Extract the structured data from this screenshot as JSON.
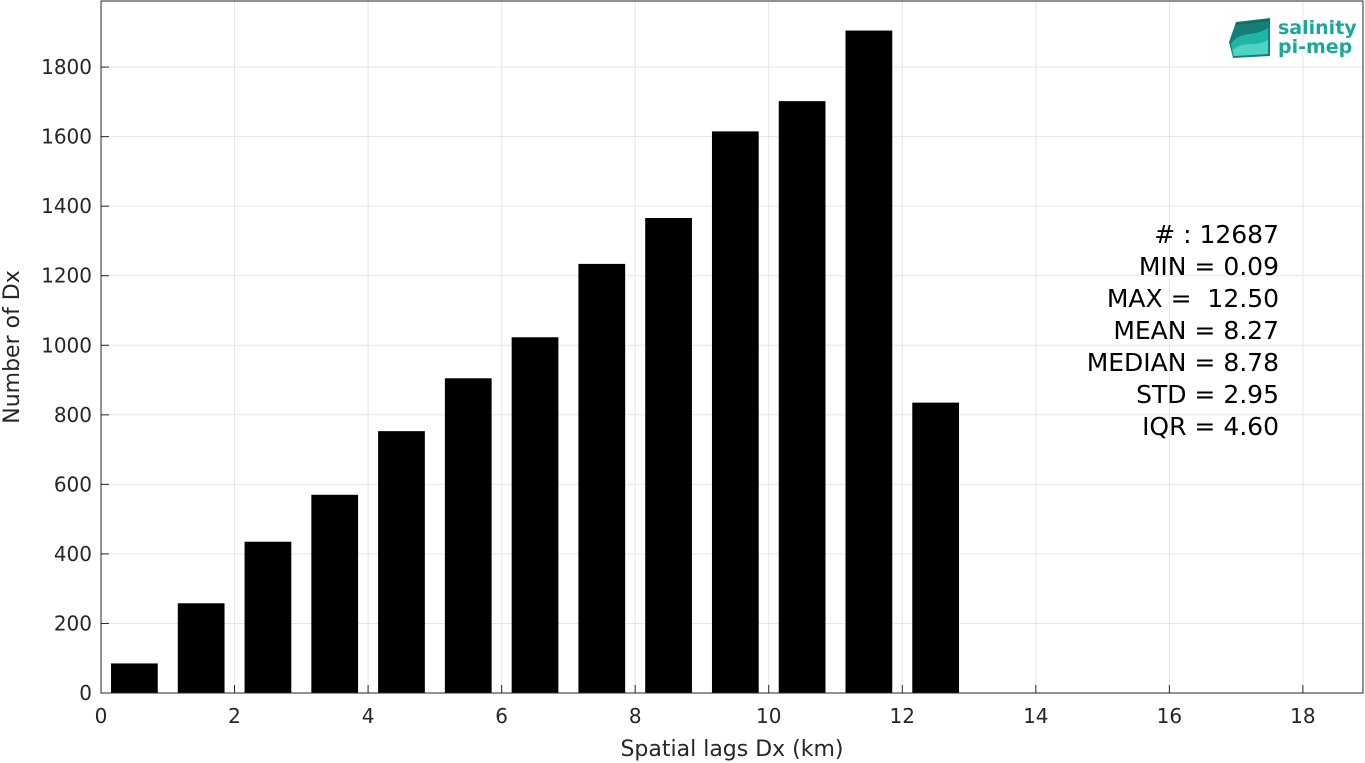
{
  "chart_data": {
    "type": "bar",
    "xlabel": "Spatial lags Dx (km)",
    "ylabel": "Number of Dx",
    "xlim": [
      0,
      18.9
    ],
    "ylim": [
      0,
      1990
    ],
    "xticks": [
      0,
      2,
      4,
      6,
      8,
      10,
      12,
      14,
      16,
      18
    ],
    "yticks": [
      0,
      200,
      400,
      600,
      800,
      1000,
      1200,
      1400,
      1600,
      1800
    ],
    "grid": true,
    "bar_color": "#000000",
    "bar_width": 0.7,
    "x": [
      0.5,
      1.5,
      2.5,
      3.5,
      4.5,
      5.5,
      6.5,
      7.5,
      8.5,
      9.5,
      10.5,
      11.5,
      12.5
    ],
    "values": [
      85,
      258,
      435,
      570,
      753,
      905,
      1023,
      1234,
      1366,
      1615,
      1702,
      1905,
      835
    ],
    "annotations": [
      "# : 12687",
      "MIN = 0.09",
      "MAX =  12.50",
      "MEAN = 8.27",
      "MEDIAN = 8.78",
      "STD = 2.95",
      "IQR = 4.60"
    ]
  },
  "logo": {
    "line1": "salinity",
    "line2": "pi-mep",
    "color": "#1aa89c"
  }
}
